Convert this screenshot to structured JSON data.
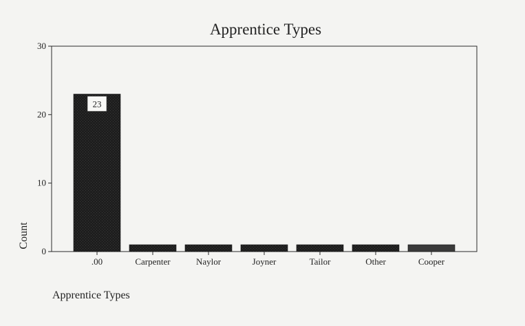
{
  "chart_data": {
    "type": "bar",
    "title": "Apprentice Types",
    "xlabel": "Apprentice Types",
    "ylabel": "Count",
    "categories": [
      ".00",
      "Carpenter",
      "Naylor",
      "Joyner",
      "Tailor",
      "Other",
      "Cooper"
    ],
    "values": [
      23,
      1,
      1,
      1,
      1,
      1,
      1
    ],
    "ylim": [
      0,
      30
    ],
    "yticks": [
      0,
      10,
      20,
      30
    ],
    "data_labels": [
      {
        "category": ".00",
        "text": "23"
      }
    ],
    "grid": false,
    "legend": "none",
    "bar_color": "#1e1e1e",
    "last_bar_color": "#3a3a3a"
  }
}
